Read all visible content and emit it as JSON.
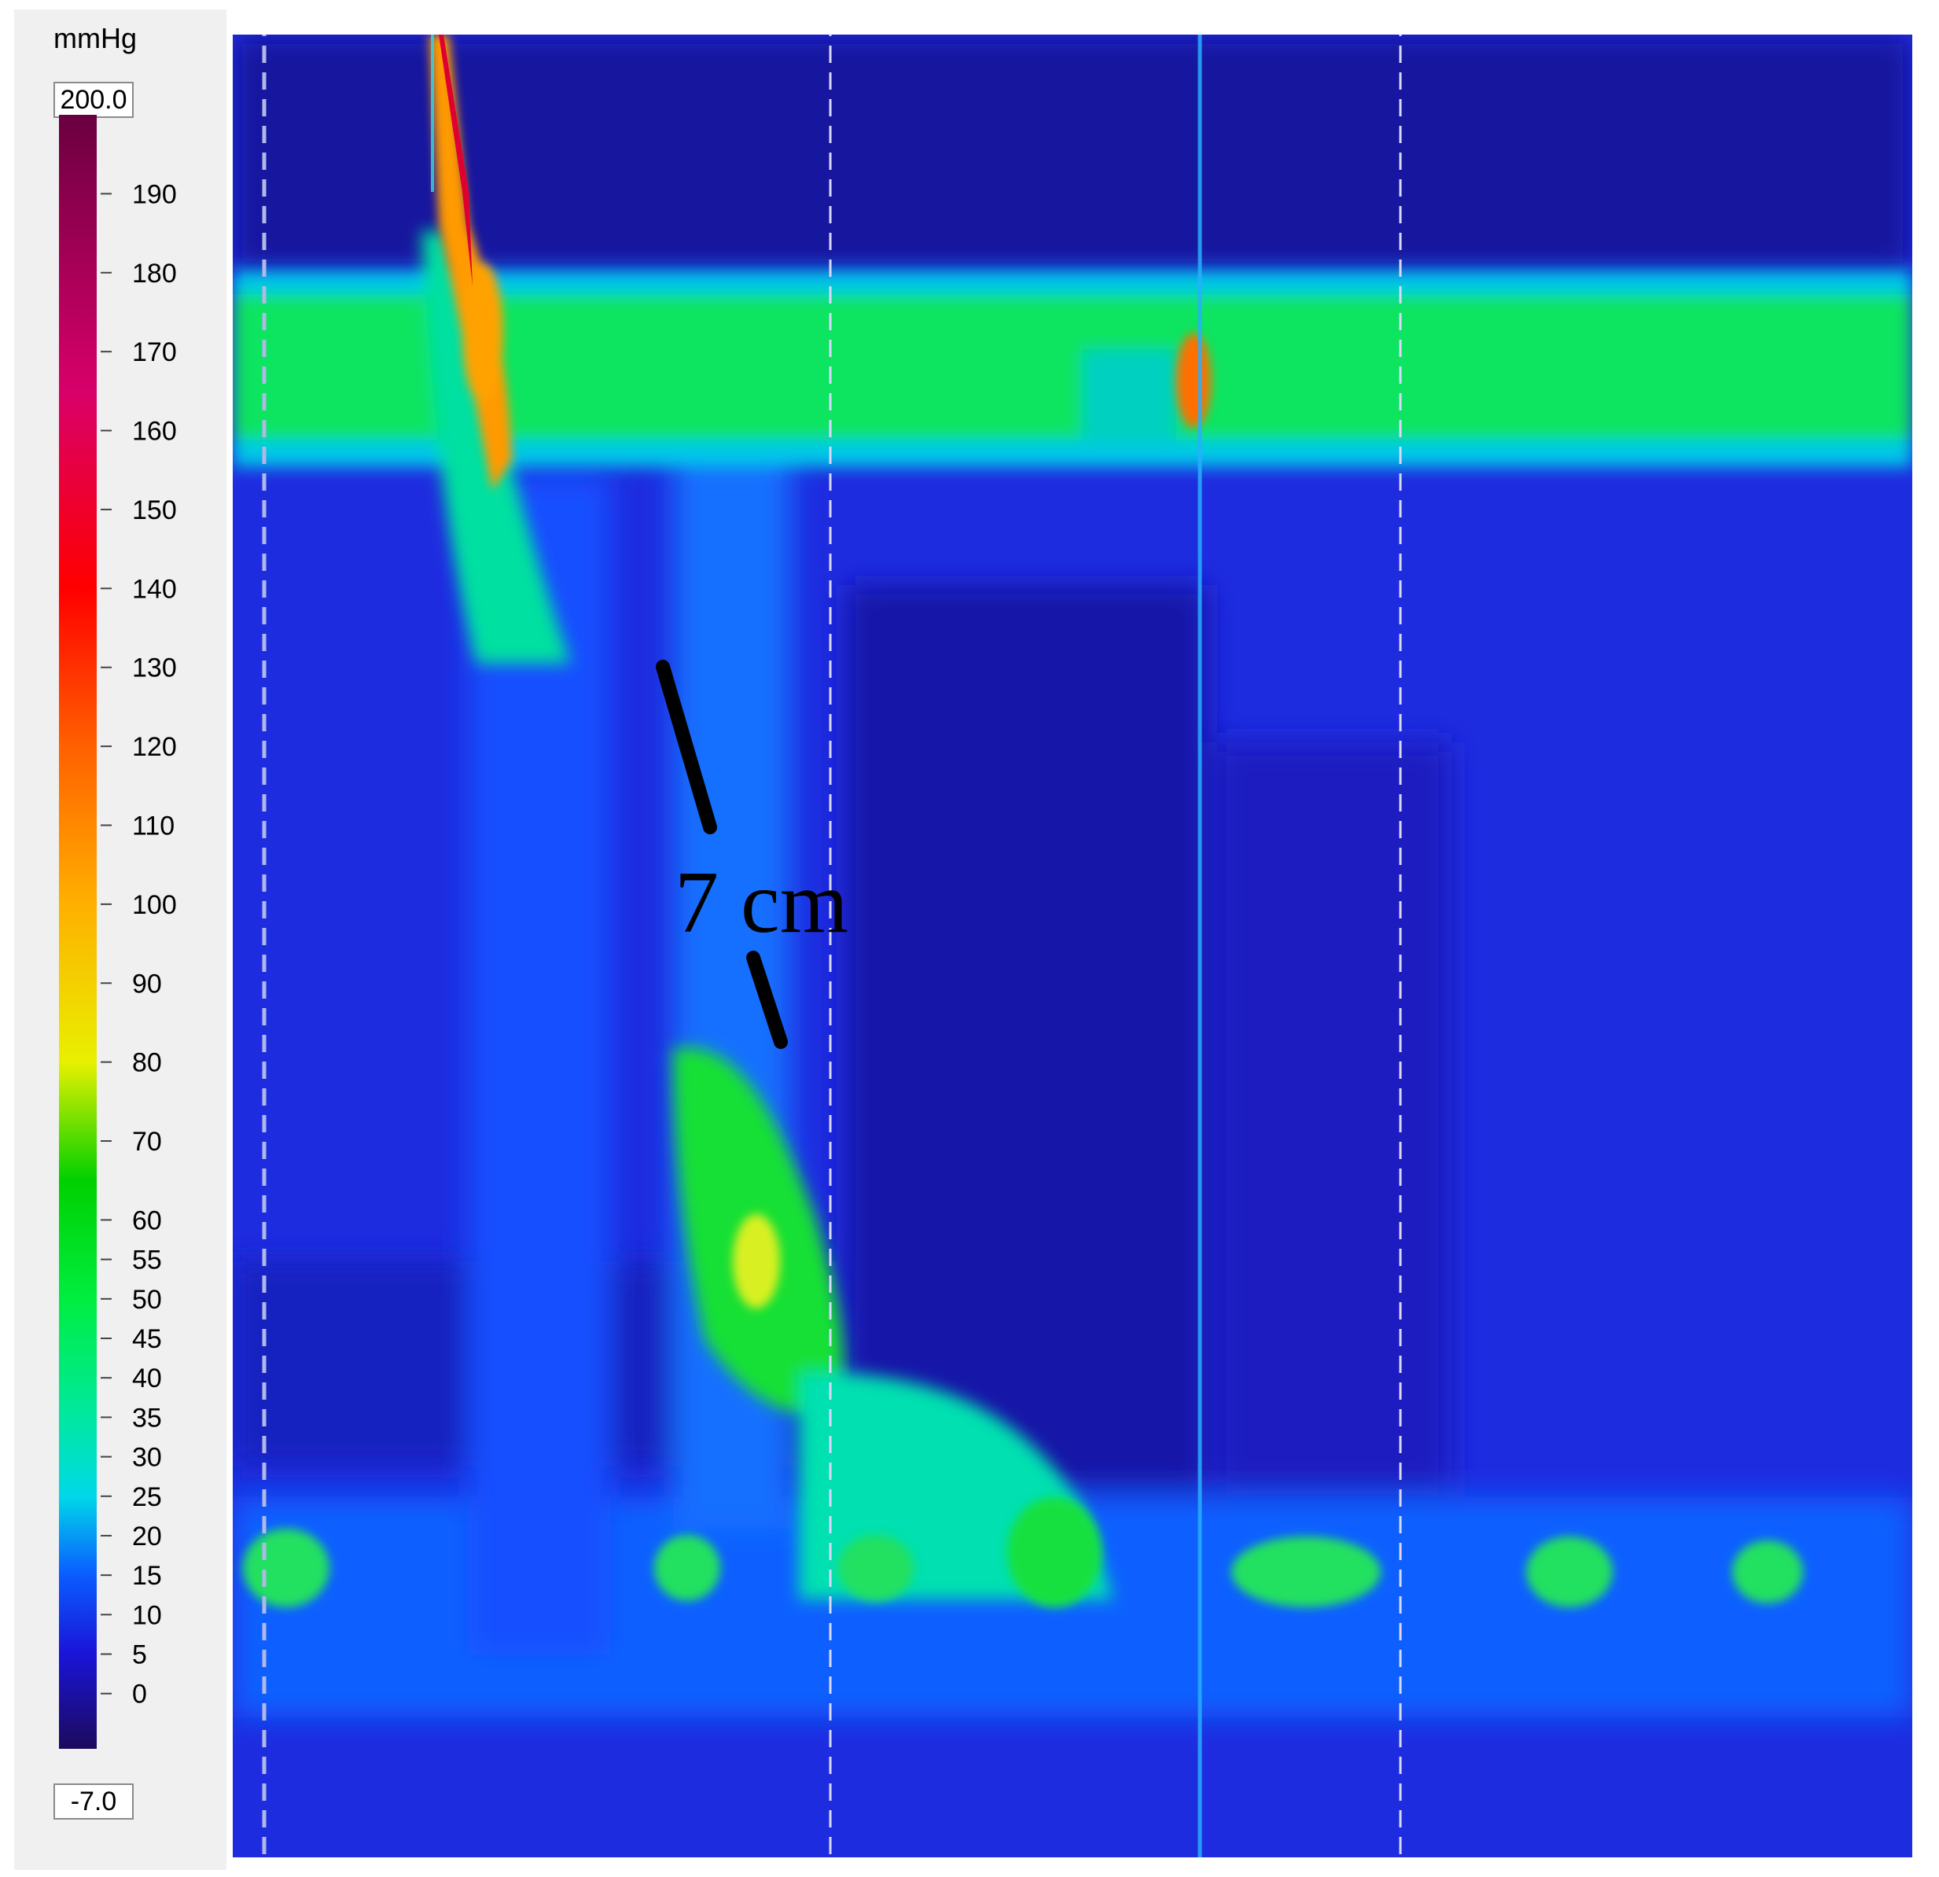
{
  "colorbar": {
    "unit": "mmHg",
    "max_value": "200.0",
    "min_value": "-7.0",
    "tick_labels": [
      "190",
      "180",
      "170",
      "160",
      "150",
      "140",
      "130",
      "120",
      "110",
      "100",
      "90",
      "80",
      "70",
      "60",
      "55",
      "50",
      "45",
      "40",
      "35",
      "30",
      "25",
      "20",
      "15",
      "10",
      "5",
      "0"
    ]
  },
  "chart_data": {
    "type": "heatmap",
    "title": "",
    "xlabel": "",
    "ylabel": "",
    "colorbar_range": [
      -7.0,
      200.0
    ],
    "colorbar_unit": "mmHg",
    "colormap_stops": [
      {
        "value": -7,
        "color": "#1c0a5c"
      },
      {
        "value": 5,
        "color": "#1a14d8"
      },
      {
        "value": 15,
        "color": "#0a5cff"
      },
      {
        "value": 25,
        "color": "#00d8e8"
      },
      {
        "value": 35,
        "color": "#00e8a0"
      },
      {
        "value": 50,
        "color": "#00ee40"
      },
      {
        "value": 65,
        "color": "#00d000"
      },
      {
        "value": 80,
        "color": "#e8f000"
      },
      {
        "value": 100,
        "color": "#ffb000"
      },
      {
        "value": 120,
        "color": "#ff6000"
      },
      {
        "value": 140,
        "color": "#ff0000"
      },
      {
        "value": 165,
        "color": "#d8006a"
      },
      {
        "value": 200,
        "color": "#6a0040"
      }
    ],
    "features": [
      {
        "name": "upper band",
        "pressure": 60
      },
      {
        "name": "lower band",
        "pressure": 20
      },
      {
        "name": "swallow contraction peak",
        "pressure": 180
      },
      {
        "name": "distal contraction",
        "pressure": 60
      },
      {
        "name": "secondary spike",
        "pressure": 120
      }
    ],
    "annotation": "7 cm",
    "grid": "dashed vertical lines"
  }
}
